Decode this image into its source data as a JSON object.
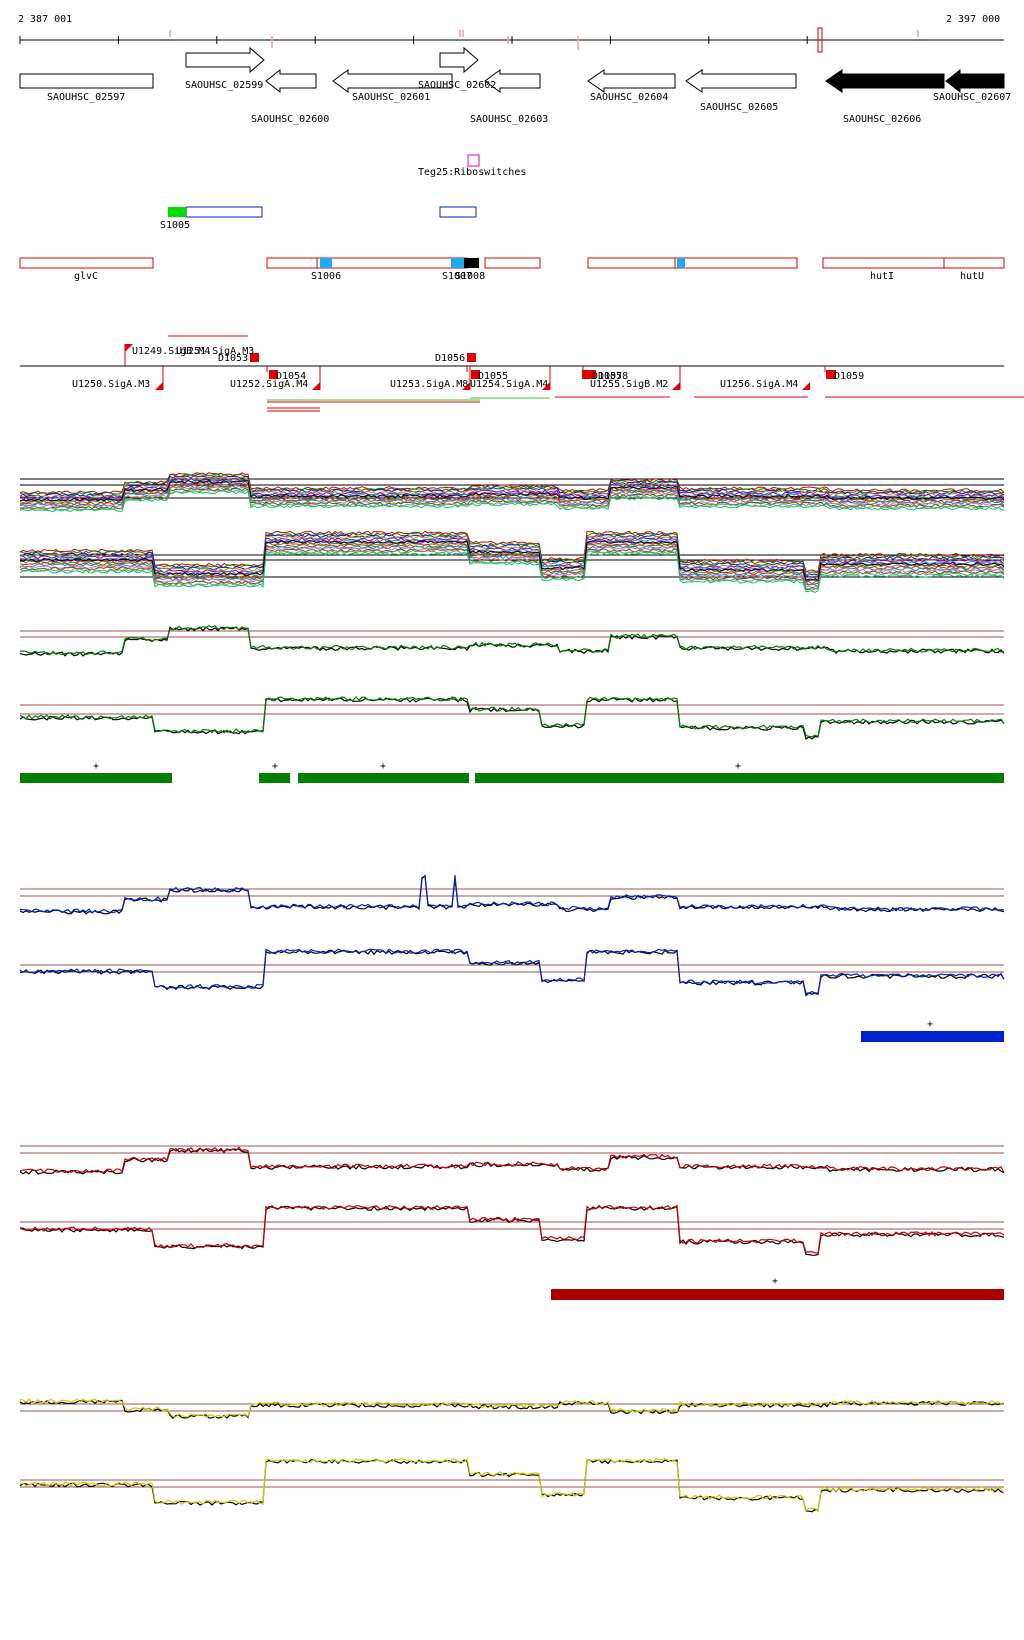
{
  "ruler": {
    "start_label": "2 387 001",
    "end_label": "2 397 000",
    "start_bp": 2387001,
    "end_bp": 2397000
  },
  "colors": {
    "black": "#000000",
    "red": "#e00000",
    "green": "#008000",
    "green_bright": "#00dd00",
    "blue": "#0022cc",
    "blue_light": "#22aaee",
    "darkred": "#aa0000",
    "yellow": "#cccc00",
    "magenta": "#dd00dd",
    "pink": "#f0a0a0",
    "line_brown": "#a05050",
    "light_green": "#33cc33"
  },
  "genes": [
    {
      "label": "SAOUHSC_02597",
      "dir": "none",
      "filled": false
    },
    {
      "label": "SAOUHSC_02599",
      "dir": "right",
      "filled": false
    },
    {
      "label": "SAOUHSC_02600",
      "dir": "left",
      "filled": false
    },
    {
      "label": "SAOUHSC_02601",
      "dir": "left",
      "filled": false
    },
    {
      "label": "SAOUHSC_02602",
      "dir": "right",
      "filled": false
    },
    {
      "label": "SAOUHSC_02603",
      "dir": "left",
      "filled": false
    },
    {
      "label": "SAOUHSC_02604",
      "dir": "left",
      "filled": false
    },
    {
      "label": "SAOUHSC_02605",
      "dir": "left",
      "filled": false
    },
    {
      "label": "SAOUHSC_02606",
      "dir": "left",
      "filled": true
    },
    {
      "label": "SAOUHSC_02607",
      "dir": "left",
      "filled": true
    }
  ],
  "riboswitch": {
    "label": "Teg25:Riboswitches"
  },
  "s_features": [
    {
      "label": "S1005"
    },
    {
      "label": "S1006"
    },
    {
      "label": "S1007"
    },
    {
      "label": "S1008"
    }
  ],
  "operon_labels": [
    {
      "label": "glvC"
    },
    {
      "label": "hutI"
    },
    {
      "label": "hutU"
    }
  ],
  "promoters": [
    {
      "label": "U1249.SigB.M4"
    },
    {
      "label": "U1251.SigA.M3"
    },
    {
      "label": "U1250.SigA.M3"
    },
    {
      "label": "U1252.SigA.M4"
    },
    {
      "label": "U1253.SigA.M8"
    },
    {
      "label": "U1254.SigA.M4"
    },
    {
      "label": "U1255.SigB.M2"
    },
    {
      "label": "U1256.SigA.M4"
    }
  ],
  "d_features": [
    {
      "label": "D1053"
    },
    {
      "label": "D1054"
    },
    {
      "label": "D1056"
    },
    {
      "label": "D1055"
    },
    {
      "label": "D1057"
    },
    {
      "label": "D1058"
    },
    {
      "label": "D1059"
    }
  ],
  "segment_strand_label": "+"
}
